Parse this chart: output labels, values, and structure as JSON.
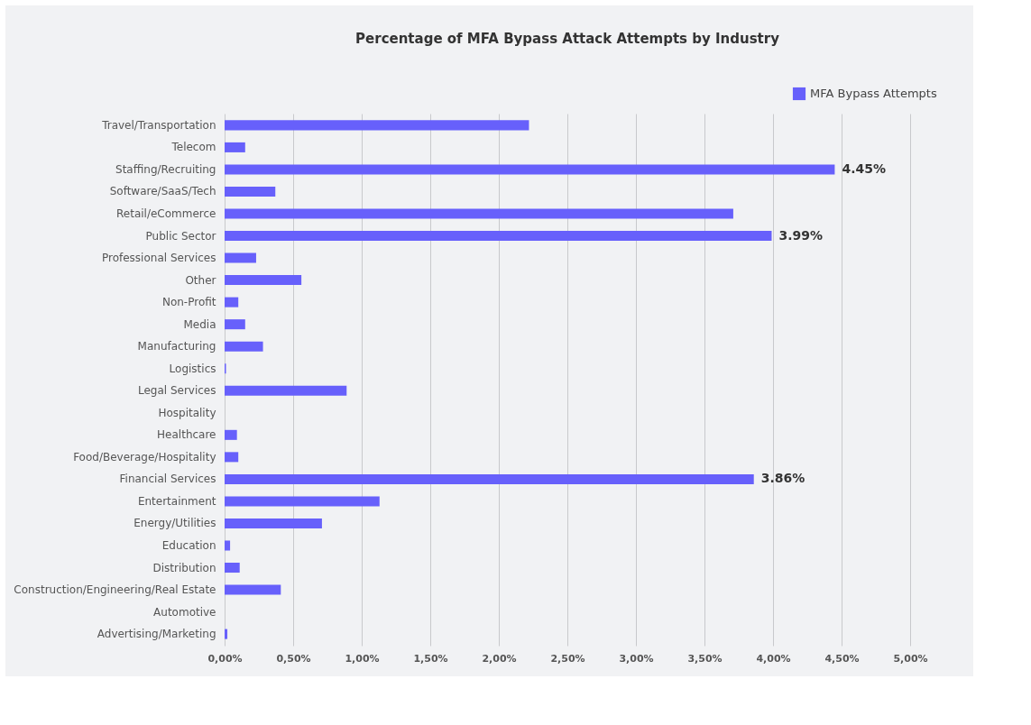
{
  "chart_data": {
    "type": "bar",
    "orientation": "horizontal",
    "title": "Percentage of MFA Bypass Attack Attempts by Industry",
    "categories": [
      "Travel/Transportation",
      "Telecom",
      "Staffing/Recruiting",
      "Software/SaaS/Tech",
      "Retail/eCommerce",
      "Public Sector",
      "Professional Services",
      "Other",
      "Non-Profit",
      "Media",
      "Manufacturing",
      "Logistics",
      "Legal Services",
      "Hospitality",
      "Healthcare",
      "Food/Beverage/Hospitality",
      "Financial Services",
      "Entertainment",
      "Energy/Utilities",
      "Education",
      "Distribution",
      "Construction/Engineering/Real Estate",
      "Automotive",
      "Advertising/Marketing"
    ],
    "series": [
      {
        "name": "MFA Bypass Attempts",
        "color": "#6760fb",
        "values": [
          2.22,
          0.15,
          4.45,
          0.37,
          3.71,
          3.99,
          0.23,
          0.56,
          0.1,
          0.15,
          0.28,
          0.01,
          0.89,
          0,
          0.09,
          0.1,
          3.86,
          1.13,
          0.71,
          0.04,
          0.11,
          0.41,
          0,
          0.02
        ],
        "value_labels": [
          null,
          null,
          "4.45%",
          null,
          null,
          "3.99%",
          null,
          null,
          null,
          null,
          null,
          null,
          null,
          null,
          null,
          null,
          "3.86%",
          null,
          null,
          null,
          null,
          null,
          null,
          null
        ]
      }
    ],
    "xlim": [
      0,
      5
    ],
    "xticks": [
      {
        "value": 0,
        "label": "0,00%"
      },
      {
        "value": 0.5,
        "label": "0,50%"
      },
      {
        "value": 1,
        "label": "1,00%"
      },
      {
        "value": 1.5,
        "label": "1,50%"
      },
      {
        "value": 2,
        "label": "2,00%"
      },
      {
        "value": 2.5,
        "label": "2,50%"
      },
      {
        "value": 3,
        "label": "3,00%"
      },
      {
        "value": 3.5,
        "label": "3,50%"
      },
      {
        "value": 4,
        "label": "4,00%"
      },
      {
        "value": 4.5,
        "label": "4,50%"
      },
      {
        "value": 5,
        "label": "5,00%"
      }
    ],
    "grid": "x",
    "legend": "top right"
  }
}
